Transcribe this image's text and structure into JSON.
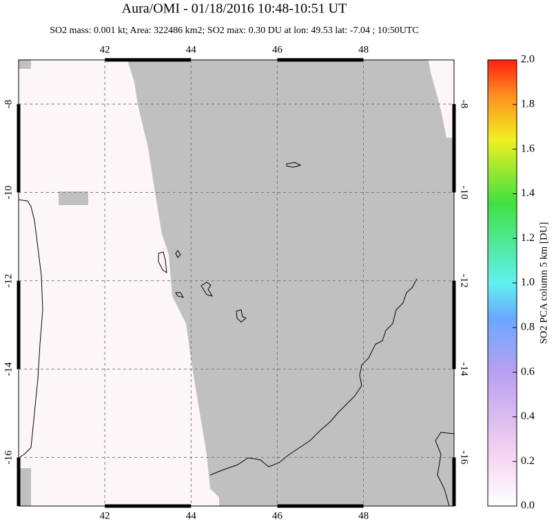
{
  "chart_data": {
    "type": "map",
    "title": "Aura/OMI - 01/18/2016 10:48-10:51 UT",
    "subtitle": "SO2 mass: 0.001 kt; Area: 322486 km2; SO2 max: 0.30 DU at lon: 49.53 lat: -7.04 ; 10:50UTC",
    "xlim": [
      40,
      50.1
    ],
    "ylim": [
      -17.1,
      -7
    ],
    "xticks": [
      42,
      44,
      46,
      48
    ],
    "yticks": [
      -8,
      -10,
      -12,
      -14,
      -16
    ],
    "grid": true,
    "colorbar": {
      "label": "SO2 PCA column 5 km [DU]",
      "lim": [
        0,
        2
      ],
      "ticks": [
        {
          "value": 0,
          "label": "0.0"
        },
        0.2,
        0.4,
        0.6,
        0.8,
        {
          "value": 1,
          "label": "1.0"
        },
        1.2,
        1.4,
        1.6,
        1.8,
        {
          "value": 2,
          "label": "2.0"
        }
      ]
    }
  }
}
